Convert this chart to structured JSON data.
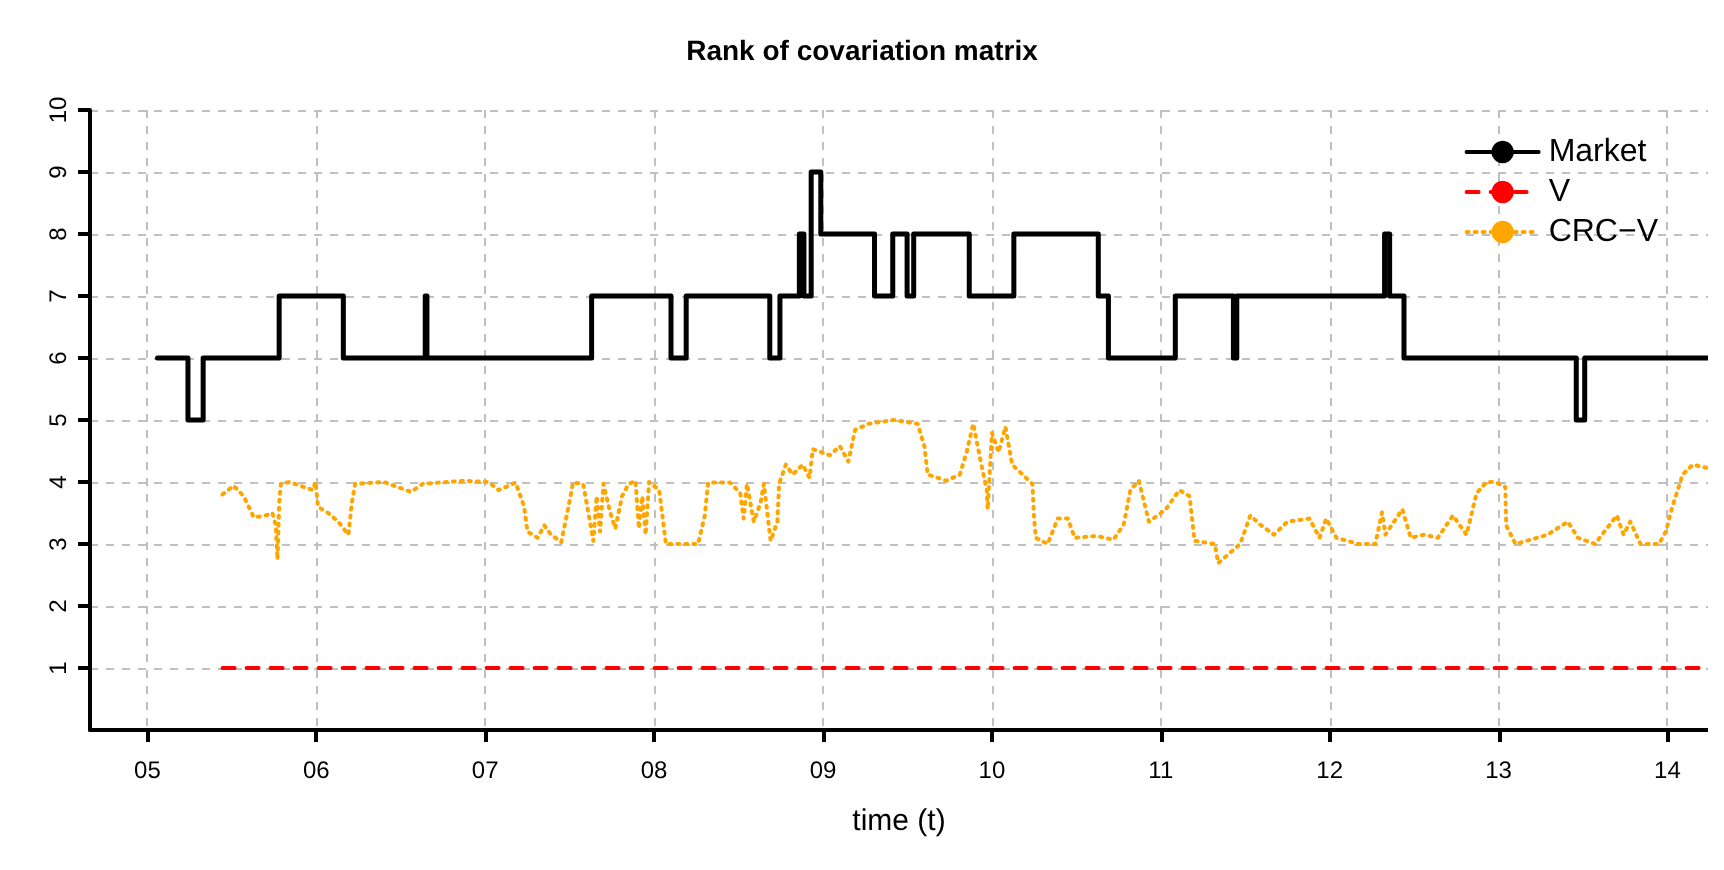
{
  "chart_data": {
    "type": "step",
    "title": "Rank of covariation matrix",
    "xlabel": "time (t)",
    "xlim": [
      4.66,
      14.24
    ],
    "xticks": [
      {
        "value": 5,
        "label": "05"
      },
      {
        "value": 6,
        "label": "06"
      },
      {
        "value": 7,
        "label": "07"
      },
      {
        "value": 8,
        "label": "08"
      },
      {
        "value": 9,
        "label": "09"
      },
      10,
      11,
      12,
      13,
      14
    ],
    "ylim": [
      0,
      10
    ],
    "yticks": [
      1,
      2,
      3,
      4,
      5,
      6,
      7,
      8,
      9,
      10
    ],
    "grid": true,
    "legend": "top right",
    "marker": "none",
    "series": [
      {
        "name": "Market",
        "type": "step",
        "color": "#000000",
        "line_style": "solid",
        "x": [
          5.06,
          5.24,
          5.33,
          5.78,
          6.16,
          6.645,
          6.655,
          7.63,
          8.1,
          8.19,
          8.685,
          8.745,
          8.86,
          8.887,
          8.93,
          8.987,
          9.305,
          9.413,
          9.498,
          9.537,
          9.866,
          10.13,
          10.63,
          10.69,
          11.086,
          11.43,
          11.45,
          12.325,
          12.355,
          12.44,
          13.46,
          13.51,
          14.24
        ],
        "values": [
          6,
          5,
          6,
          7,
          6,
          7,
          6,
          7,
          6,
          7,
          6,
          7,
          8,
          7,
          9,
          8,
          7,
          8,
          7,
          8,
          7,
          8,
          7,
          6,
          7,
          6,
          7,
          8,
          7,
          6,
          5,
          6,
          6
        ]
      },
      {
        "name": "V",
        "type": "line",
        "color": "#ff0000",
        "line_style": "dashed",
        "x": [
          5.445,
          14.24
        ],
        "values": [
          1,
          1
        ]
      },
      {
        "name": "CRC−V",
        "type": "line",
        "color": "#ffa500",
        "line_style": "dotted",
        "x": [
          5.445,
          5.51,
          5.57,
          5.63,
          5.7,
          5.74,
          5.76,
          5.77,
          5.78,
          5.79,
          5.84,
          5.98,
          5.995,
          6.01,
          6.07,
          6.13,
          6.19,
          6.21,
          6.23,
          6.4,
          6.56,
          6.63,
          6.87,
          7.02,
          7.08,
          7.18,
          7.23,
          7.25,
          7.31,
          7.35,
          7.39,
          7.45,
          7.49,
          7.52,
          7.58,
          7.62,
          7.64,
          7.66,
          7.68,
          7.7,
          7.74,
          7.77,
          7.81,
          7.85,
          7.89,
          7.91,
          7.93,
          7.95,
          7.97,
          8.03,
          8.07,
          8.14,
          8.26,
          8.3,
          8.32,
          8.45,
          8.51,
          8.53,
          8.55,
          8.59,
          8.63,
          8.65,
          8.69,
          8.73,
          8.74,
          8.78,
          8.82,
          8.88,
          8.92,
          8.94,
          9.04,
          9.1,
          9.15,
          9.19,
          9.27,
          9.42,
          9.56,
          9.6,
          9.62,
          9.73,
          9.81,
          9.85,
          9.89,
          9.93,
          9.97,
          9.975,
          10.0,
          10.04,
          10.08,
          10.12,
          10.24,
          10.25,
          10.26,
          10.33,
          10.39,
          10.45,
          10.49,
          10.62,
          10.72,
          10.78,
          10.82,
          10.87,
          10.93,
          11.03,
          11.11,
          11.17,
          11.2,
          11.32,
          11.34,
          11.47,
          11.53,
          11.59,
          11.67,
          11.75,
          11.88,
          11.94,
          11.98,
          12.04,
          12.17,
          12.27,
          12.31,
          12.33,
          12.43,
          12.48,
          12.56,
          12.64,
          12.73,
          12.81,
          12.87,
          12.93,
          12.98,
          13.04,
          13.045,
          13.1,
          13.29,
          13.41,
          13.47,
          13.57,
          13.7,
          13.74,
          13.78,
          13.84,
          13.95,
          13.99,
          14.03,
          14.09,
          14.15,
          14.23
        ],
        "values": [
          3.8,
          3.94,
          3.77,
          3.43,
          3.46,
          3.5,
          3.3,
          2.75,
          3.66,
          3.97,
          4.0,
          3.87,
          4.0,
          3.6,
          3.5,
          3.36,
          3.15,
          3.66,
          3.97,
          4.0,
          3.84,
          3.97,
          4.02,
          4.0,
          3.87,
          3.99,
          3.61,
          3.2,
          3.1,
          3.3,
          3.15,
          3.03,
          3.56,
          3.99,
          3.97,
          3.36,
          3.05,
          3.77,
          3.2,
          3.97,
          3.51,
          3.25,
          3.77,
          3.97,
          4.02,
          3.25,
          3.77,
          3.15,
          4.0,
          3.87,
          3.0,
          3.0,
          3.0,
          3.46,
          3.99,
          3.99,
          3.82,
          3.41,
          3.97,
          3.36,
          3.66,
          3.97,
          3.05,
          3.36,
          3.97,
          4.28,
          4.12,
          4.28,
          4.07,
          4.53,
          4.43,
          4.58,
          4.33,
          4.84,
          4.94,
          5.0,
          4.94,
          4.58,
          4.12,
          4.02,
          4.12,
          4.48,
          4.94,
          4.38,
          3.87,
          3.56,
          4.79,
          4.48,
          4.89,
          4.28,
          3.97,
          3.41,
          3.1,
          3.0,
          3.41,
          3.41,
          3.1,
          3.13,
          3.07,
          3.31,
          3.87,
          4.02,
          3.36,
          3.56,
          3.87,
          3.77,
          3.05,
          3.0,
          2.69,
          3.0,
          3.46,
          3.31,
          3.15,
          3.36,
          3.41,
          3.1,
          3.41,
          3.1,
          3.0,
          3.0,
          3.51,
          3.15,
          3.56,
          3.1,
          3.15,
          3.1,
          3.46,
          3.15,
          3.82,
          4.0,
          4.0,
          3.92,
          3.3,
          3.0,
          3.15,
          3.36,
          3.1,
          3.0,
          3.46,
          3.15,
          3.36,
          3.0,
          3.0,
          3.2,
          3.61,
          4.12,
          4.28,
          4.23
        ]
      }
    ]
  }
}
